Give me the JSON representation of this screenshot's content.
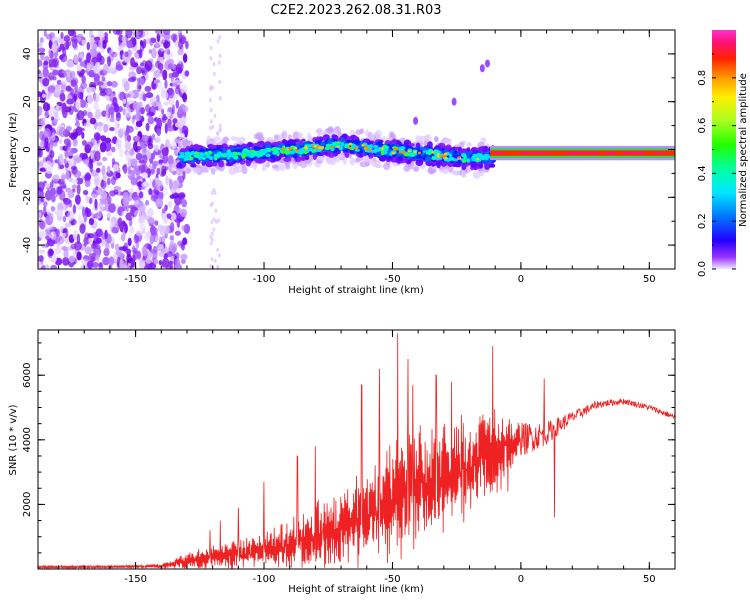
{
  "title": "C2E2.2023.262.08.31.R03",
  "chart_data": [
    {
      "type": "heatmap",
      "xlabel": "Height of straight line (km)",
      "ylabel": "Frequency (Hz)",
      "xlim": [
        -188,
        60
      ],
      "ylim": [
        -50,
        50
      ],
      "xticks": [
        -150,
        -100,
        -50,
        0,
        50
      ],
      "yticks": [
        -40,
        -20,
        0,
        20,
        40
      ],
      "colorbar": {
        "label": "Normalized spectral amplitude",
        "range": [
          0,
          1
        ],
        "ticks": [
          "0.0",
          "0.2",
          "0.4",
          "0.6",
          "0.8"
        ],
        "tick_values": [
          0,
          0.2,
          0.4,
          0.6,
          0.8
        ],
        "colormap": "gist_ncar"
      },
      "features": {
        "noise_region_x": [
          -188,
          -133
        ],
        "line_x": [
          -133,
          60
        ],
        "line_frequency": [
          [
            -133,
            -3
          ],
          [
            -110,
            -2
          ],
          [
            -85,
            0
          ],
          [
            -70,
            2
          ],
          [
            -55,
            0
          ],
          [
            -35,
            -2
          ],
          [
            -20,
            -4
          ],
          [
            -12,
            -3
          ],
          [
            0,
            -1.5
          ],
          [
            60,
            -1.5
          ]
        ],
        "harmonic_points": [
          [
            -41,
            12
          ],
          [
            -26,
            20
          ],
          [
            -15,
            34
          ],
          [
            -13,
            36
          ]
        ]
      }
    },
    {
      "type": "line",
      "xlabel": "Height of straight line (km)",
      "ylabel": "SNR (10 * v/v)",
      "xlim": [
        -188,
        60
      ],
      "ylim": [
        0,
        7400
      ],
      "xticks": [
        -150,
        -100,
        -50,
        0,
        50
      ],
      "yticks": [
        2000,
        4000,
        6000
      ],
      "color": "#ee2222",
      "envelope_x": [
        -188,
        -160,
        -140,
        -130,
        -120,
        -110,
        -100,
        -90,
        -80,
        -70,
        -60,
        -50,
        -40,
        -30,
        -20,
        -10,
        0,
        10,
        20,
        30,
        40,
        50,
        60
      ],
      "envelope_base": [
        60,
        60,
        80,
        200,
        300,
        400,
        500,
        700,
        900,
        1100,
        1500,
        1900,
        2300,
        2700,
        3000,
        3400,
        4000,
        4200,
        4700,
        5100,
        5200,
        5000,
        4700
      ],
      "envelope_amp": [
        80,
        80,
        120,
        500,
        700,
        800,
        900,
        1400,
        1800,
        2200,
        2700,
        3200,
        3200,
        3000,
        2800,
        2400,
        900,
        600,
        300,
        200,
        150,
        150,
        150
      ],
      "peaks": [
        [
          -48,
          7300
        ],
        [
          -11,
          6900
        ],
        [
          -44,
          6500
        ],
        [
          -33,
          6000
        ],
        [
          -55,
          6200
        ],
        [
          -62,
          5700
        ],
        [
          -42,
          5700
        ],
        [
          -27,
          5800
        ],
        [
          -80,
          3800
        ],
        [
          -87,
          3500
        ],
        [
          -100,
          2700
        ],
        [
          -110,
          1900
        ],
        [
          -117,
          1500
        ],
        [
          -121,
          1200
        ],
        [
          9,
          5900
        ],
        [
          13,
          1600
        ],
        [
          -5,
          2400
        ]
      ]
    }
  ]
}
